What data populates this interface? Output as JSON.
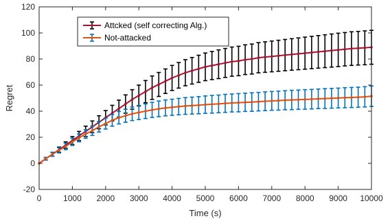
{
  "chart_data": {
    "type": "line",
    "title": "",
    "xlabel": "Time (s)",
    "ylabel": "Regret",
    "xlim": [
      0,
      10000
    ],
    "ylim": [
      -20,
      120
    ],
    "xticks": [
      0,
      1000,
      2000,
      3000,
      4000,
      5000,
      6000,
      7000,
      8000,
      9000,
      10000
    ],
    "yticks": [
      -20,
      0,
      20,
      40,
      60,
      80,
      100,
      120
    ],
    "x_tick_labels": [
      "0",
      "1000",
      "2000",
      "3000",
      "4000",
      "5000",
      "6000",
      "7000",
      "8000",
      "9000",
      "10000"
    ],
    "y_tick_labels": [
      "-20",
      "0",
      "20",
      "40",
      "60",
      "80",
      "100",
      "120"
    ],
    "grid": false,
    "legend_position": "top-left",
    "x": [
      0,
      200,
      400,
      600,
      800,
      1000,
      1200,
      1400,
      1600,
      1800,
      2000,
      2200,
      2400,
      2600,
      2800,
      3000,
      3200,
      3400,
      3600,
      3800,
      4000,
      4200,
      4400,
      4600,
      4800,
      5000,
      5200,
      5400,
      5600,
      5800,
      6000,
      6200,
      6400,
      6600,
      6800,
      7000,
      7200,
      7400,
      7600,
      7800,
      8000,
      8200,
      8400,
      8600,
      8800,
      9000,
      9200,
      9400,
      9600,
      9800,
      10000
    ],
    "series": [
      {
        "name": "Attcked (self correcting Alg.)",
        "line_color": "#a2142f",
        "errorbar_color": "#000000",
        "values": [
          0,
          3.5,
          7,
          10.5,
          14,
          17.5,
          21,
          24.5,
          28,
          31.5,
          35,
          38.5,
          42,
          45.5,
          49,
          52,
          55,
          58,
          60.5,
          63,
          65.5,
          67.5,
          69.5,
          71,
          72.5,
          74,
          75,
          76,
          77,
          78,
          78.5,
          79.5,
          80,
          81,
          81.5,
          82,
          82.5,
          83,
          83.5,
          84,
          84.5,
          85,
          85.5,
          86,
          86.5,
          87,
          87.5,
          88,
          88.3,
          88.6,
          89
        ],
        "error": [
          0,
          1,
          1.5,
          2,
          2.5,
          3,
          3.5,
          4,
          4.5,
          5,
          5.5,
          6,
          6.5,
          7,
          7.5,
          8,
          8.5,
          9,
          9.2,
          9.4,
          9.6,
          9.8,
          10,
          10.2,
          10.4,
          10.6,
          10.8,
          11,
          11.1,
          11.2,
          11.3,
          11.4,
          11.5,
          11.6,
          11.7,
          11.8,
          11.9,
          12,
          12.1,
          12.2,
          12.3,
          12.4,
          12.5,
          12.6,
          12.7,
          12.8,
          12.8,
          12.9,
          12.9,
          13,
          13
        ]
      },
      {
        "name": "Not-attacked",
        "line_color": "#d95319",
        "errorbar_color": "#0072bd",
        "values": [
          0,
          3.5,
          7,
          10,
          13,
          16.5,
          19.5,
          22.5,
          25,
          28,
          30.5,
          33,
          35,
          36.5,
          38,
          39,
          40,
          41,
          41.8,
          42.5,
          43,
          43.5,
          44,
          44.3,
          44.6,
          45,
          45.3,
          45.6,
          46,
          46.3,
          46.5,
          46.8,
          47,
          47.3,
          47.6,
          47.9,
          48.1,
          48.4,
          48.6,
          48.8,
          49,
          49.2,
          49.5,
          49.7,
          49.9,
          50.1,
          50.3,
          50.5,
          50.7,
          51,
          51.5
        ],
        "error": [
          0,
          1,
          1.5,
          2,
          2.5,
          2.8,
          3,
          3.3,
          3.6,
          4,
          4.2,
          4.5,
          4.8,
          5,
          5.2,
          5.4,
          5.6,
          5.8,
          6,
          6.1,
          6.2,
          6.3,
          6.4,
          6.5,
          6.6,
          6.7,
          6.8,
          6.8,
          6.9,
          6.9,
          7,
          7,
          7.1,
          7.1,
          7.2,
          7.2,
          7.3,
          7.3,
          7.4,
          7.4,
          7.5,
          7.5,
          7.5,
          7.6,
          7.6,
          7.6,
          7.7,
          7.7,
          7.7,
          7.8,
          7.8
        ]
      }
    ]
  }
}
